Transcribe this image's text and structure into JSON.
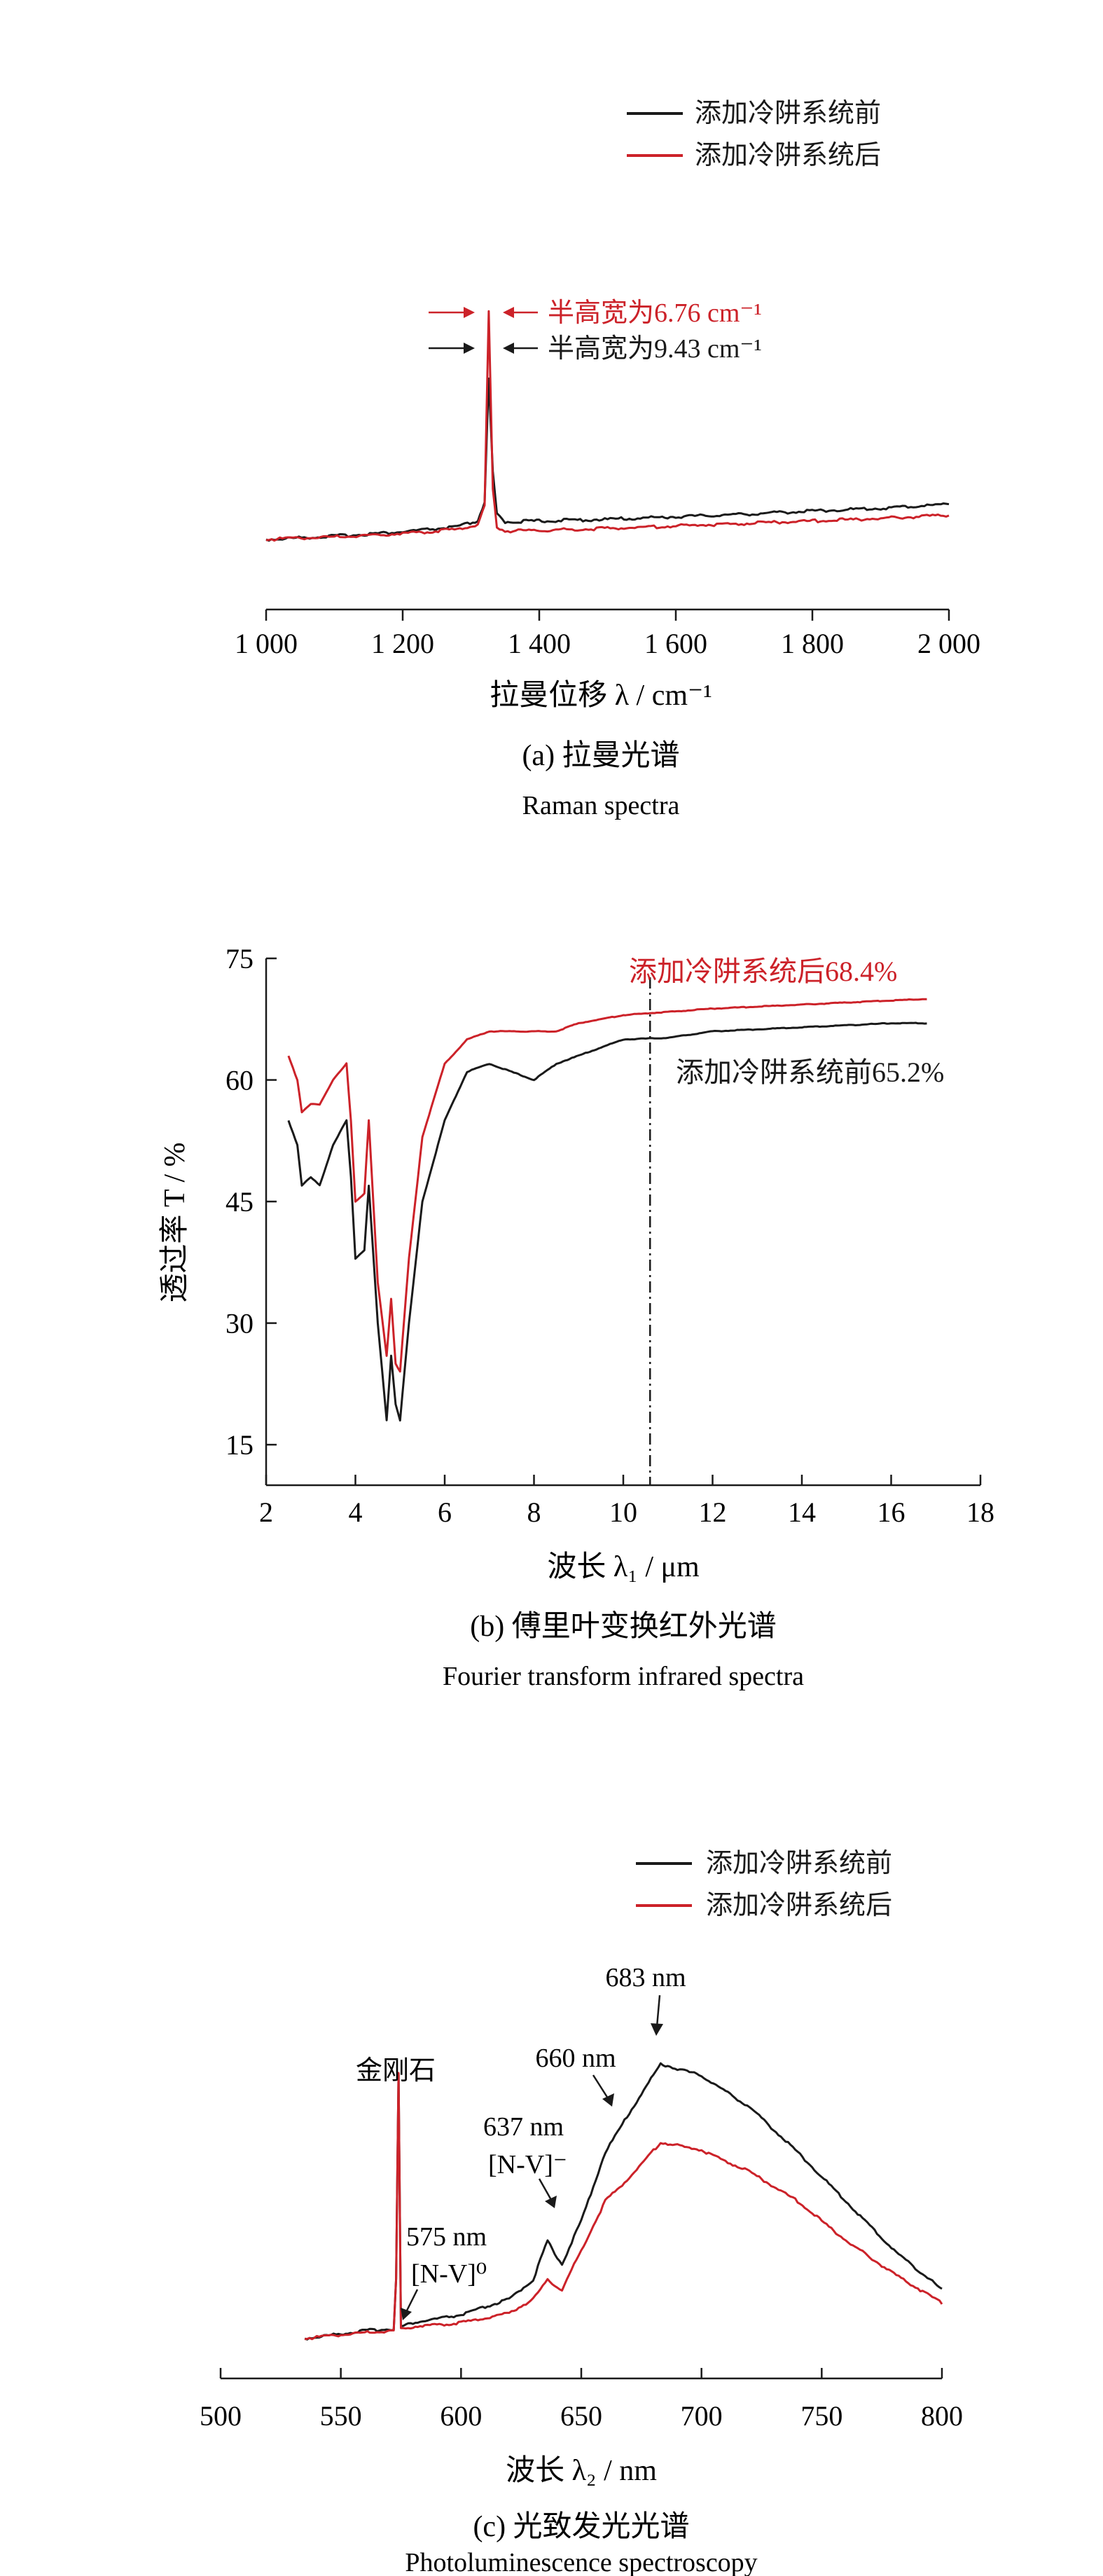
{
  "colors": {
    "before": "#1a1a1a",
    "after": "#cc2229",
    "axis": "#1a1a1a"
  },
  "chart_data": [
    {
      "type": "line",
      "xlabel": "拉曼位移 λ / cm⁻¹",
      "ylabel": "",
      "xlim": [
        1000,
        2000
      ],
      "xticks": [
        1000,
        1200,
        1400,
        1600,
        1800,
        2000
      ],
      "xtick_labels": [
        "1 000",
        "1 200",
        "1 400",
        "1 600",
        "1 800",
        "2 000"
      ],
      "legend": {
        "placement": "top-right",
        "items": [
          "添加冷阱系统前",
          "添加冷阱系统后"
        ]
      },
      "annotations": [
        "半高宽为6.76 cm⁻¹",
        "半高宽为9.43 cm⁻¹"
      ],
      "caption": "(a) 拉曼光谱",
      "caption_en": "Raman spectra",
      "series": [
        {
          "name": "添加冷阱系统前",
          "x": [
            1000,
            1100,
            1200,
            1280,
            1310,
            1320,
            1326,
            1332,
            1338,
            1350,
            1400,
            1500,
            1600,
            1700,
            1800,
            1900,
            2000
          ],
          "y": [
            0.0,
            0.04,
            0.09,
            0.15,
            0.22,
            0.45,
            1.9,
            0.8,
            0.3,
            0.21,
            0.22,
            0.24,
            0.27,
            0.3,
            0.34,
            0.37,
            0.42
          ]
        },
        {
          "name": "添加冷阱系统后",
          "x": [
            1000,
            1100,
            1200,
            1280,
            1310,
            1320,
            1326,
            1332,
            1338,
            1350,
            1400,
            1500,
            1600,
            1700,
            1800,
            1900,
            2000
          ],
          "y": [
            0.0,
            0.03,
            0.07,
            0.12,
            0.18,
            0.4,
            2.7,
            0.6,
            0.15,
            0.1,
            0.11,
            0.13,
            0.16,
            0.19,
            0.22,
            0.25,
            0.29
          ]
        }
      ]
    },
    {
      "type": "line",
      "xlabel": "波长 λ₁ / μm",
      "ylabel": "透过率 T / %",
      "xlim": [
        2,
        18
      ],
      "ylim": [
        10,
        75
      ],
      "xticks": [
        2,
        4,
        6,
        8,
        10,
        12,
        14,
        16,
        18
      ],
      "yticks": [
        15,
        30,
        45,
        60,
        75
      ],
      "reference_line_x": 10.6,
      "annotations": [
        "添加冷阱系统后68.4%",
        "添加冷阱系统前65.2%"
      ],
      "caption": "(b) 傅里叶变换红外光谱",
      "caption_en": "Fourier transform infrared spectra",
      "series": [
        {
          "name": "添加冷阱系统前",
          "x": [
            2.5,
            2.7,
            2.8,
            3.0,
            3.2,
            3.5,
            3.8,
            3.9,
            4.0,
            4.2,
            4.3,
            4.5,
            4.7,
            4.8,
            4.9,
            5.0,
            5.2,
            5.5,
            6.0,
            6.5,
            7.0,
            7.5,
            8.0,
            8.5,
            9.0,
            10.0,
            11.0,
            12.0,
            14.0,
            16.0,
            16.8
          ],
          "y": [
            55,
            52,
            47,
            48,
            47,
            52,
            55,
            48,
            38,
            39,
            47,
            30,
            18,
            26,
            20,
            18,
            30,
            45,
            55,
            61,
            62,
            61,
            60,
            62,
            63,
            65,
            65.2,
            66,
            66.5,
            67,
            67
          ]
        },
        {
          "name": "添加冷阱系统后",
          "x": [
            2.5,
            2.7,
            2.8,
            3.0,
            3.2,
            3.5,
            3.8,
            3.9,
            4.0,
            4.2,
            4.3,
            4.5,
            4.7,
            4.8,
            4.9,
            5.0,
            5.2,
            5.5,
            6.0,
            6.5,
            7.0,
            7.5,
            8.0,
            8.5,
            9.0,
            10.0,
            11.0,
            12.0,
            14.0,
            16.0,
            16.8
          ],
          "y": [
            63,
            60,
            56,
            57,
            57,
            60,
            62,
            55,
            45,
            46,
            55,
            35,
            26,
            33,
            25,
            24,
            38,
            53,
            62,
            65,
            66,
            66,
            66,
            66,
            67,
            68,
            68.4,
            68.8,
            69.3,
            69.8,
            70
          ]
        }
      ]
    },
    {
      "type": "line",
      "xlabel": "波长 λ₂ / nm",
      "ylabel": "",
      "xlim": [
        500,
        800
      ],
      "xticks": [
        500,
        550,
        600,
        650,
        700,
        750,
        800
      ],
      "legend": {
        "placement": "top-right",
        "items": [
          "添加冷阱系统前",
          "添加冷阱系统后"
        ]
      },
      "annotations": [
        "金刚石",
        "575 nm",
        "[N-V]⁰",
        "637 nm",
        "[N-V]⁻",
        "660 nm",
        "683 nm"
      ],
      "caption": "(c) 光致发光光谱",
      "caption_en": "Photoluminescence spectroscopy",
      "series": [
        {
          "name": "添加冷阱系统前",
          "x": [
            535,
            560,
            572,
            573,
            574,
            575,
            580,
            600,
            620,
            630,
            636,
            638,
            642,
            650,
            660,
            670,
            683,
            700,
            720,
            740,
            760,
            780,
            800
          ],
          "y": [
            0.0,
            0.04,
            0.05,
            0.3,
            1.35,
            0.06,
            0.08,
            0.12,
            0.2,
            0.3,
            0.5,
            0.45,
            0.38,
            0.6,
            0.95,
            1.15,
            1.4,
            1.34,
            1.18,
            0.95,
            0.7,
            0.45,
            0.25
          ]
        },
        {
          "name": "添加冷阱系统后",
          "x": [
            535,
            560,
            572,
            573,
            574,
            575,
            580,
            600,
            620,
            630,
            636,
            638,
            642,
            650,
            660,
            670,
            683,
            700,
            720,
            740,
            760,
            780,
            800
          ],
          "y": [
            0.0,
            0.03,
            0.04,
            0.3,
            1.35,
            0.05,
            0.06,
            0.08,
            0.13,
            0.2,
            0.3,
            0.28,
            0.25,
            0.45,
            0.7,
            0.82,
            1.0,
            0.96,
            0.85,
            0.7,
            0.5,
            0.33,
            0.18
          ]
        }
      ]
    }
  ]
}
